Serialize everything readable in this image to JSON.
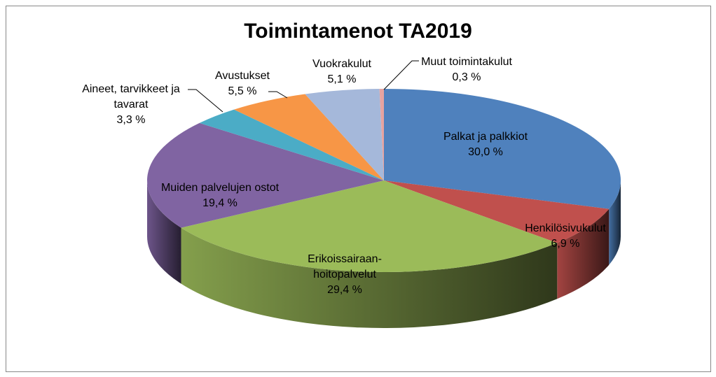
{
  "chart_data": {
    "type": "pie3d",
    "title": "Toimintamenot TA2019",
    "categories": [
      "Palkat ja palkkiot",
      "Henkilösivukulut",
      "Erikoissairaan-hoitopalvelut",
      "Muiden palvelujen ostot",
      "Aineet, tarvikkeet ja tavarat",
      "Avustukset",
      "Vuokrakulut",
      "Muut toimintakulut"
    ],
    "values": [
      30.0,
      6.9,
      29.4,
      19.4,
      3.3,
      5.5,
      5.1,
      0.3
    ],
    "value_labels": [
      "30,0 %",
      "6,9 %",
      "29,4 %",
      "19,4 %",
      "3,3 %",
      "5,5 %",
      "5,1 %",
      "0,3 %"
    ],
    "colors": [
      "#4f81bd",
      "#c0504d",
      "#9bbb59",
      "#8064a2",
      "#4bacc6",
      "#f79646",
      "#a5b8da",
      "#e6a3a0"
    ]
  }
}
